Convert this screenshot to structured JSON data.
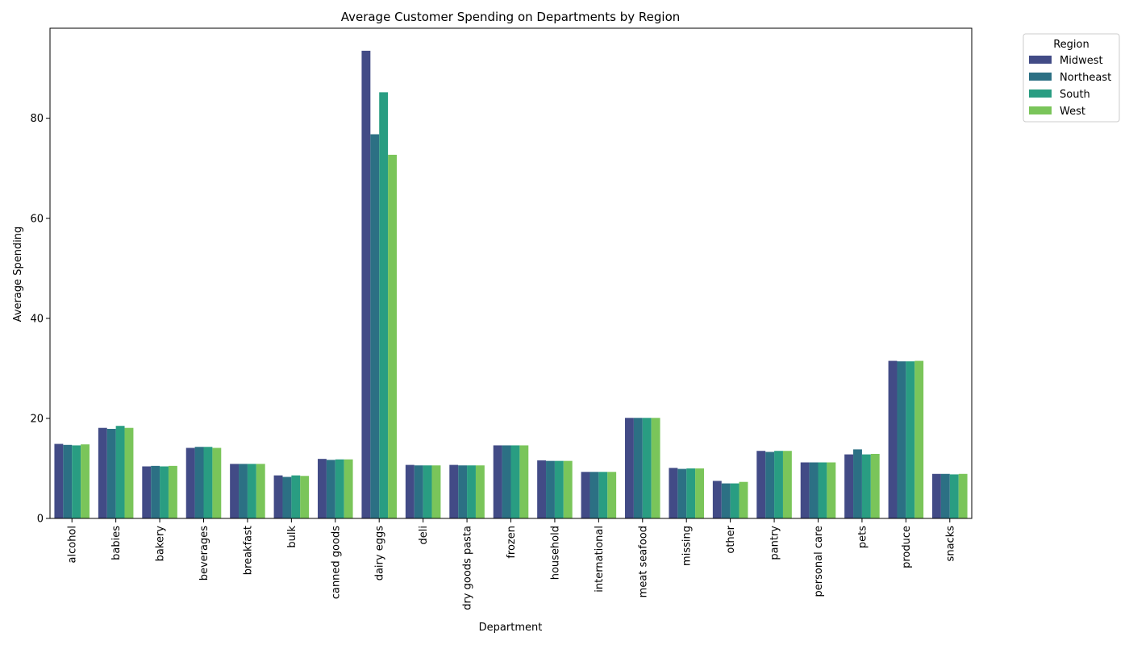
{
  "chart_data": {
    "type": "bar",
    "title": "Average Customer Spending on Departments by Region",
    "xlabel": "Department",
    "ylabel": "Average Spending",
    "ylim": [
      0,
      98
    ],
    "yticks": [
      0,
      20,
      40,
      60,
      80
    ],
    "grid": false,
    "legend": {
      "title": "Region",
      "placement": "outside-top-right"
    },
    "categories": [
      "alcohol",
      "babies",
      "bakery",
      "beverages",
      "breakfast",
      "bulk",
      "canned goods",
      "dairy eggs",
      "deli",
      "dry goods pasta",
      "frozen",
      "household",
      "international",
      "meat seafood",
      "missing",
      "other",
      "pantry",
      "personal care",
      "pets",
      "produce",
      "snacks"
    ],
    "series": [
      {
        "name": "Midwest",
        "color": "#424b86",
        "values": [
          14.9,
          18.1,
          10.4,
          14.1,
          10.9,
          8.6,
          11.9,
          93.5,
          10.7,
          10.7,
          14.6,
          11.6,
          9.3,
          20.1,
          10.1,
          7.5,
          13.5,
          11.2,
          12.8,
          31.5,
          8.9
        ]
      },
      {
        "name": "Northeast",
        "color": "#2c7084",
        "values": [
          14.7,
          17.9,
          10.5,
          14.3,
          10.9,
          8.3,
          11.7,
          76.8,
          10.6,
          10.6,
          14.6,
          11.5,
          9.3,
          20.1,
          9.9,
          7.0,
          13.3,
          11.2,
          13.8,
          31.4,
          8.9
        ]
      },
      {
        "name": "South",
        "color": "#299d82",
        "values": [
          14.6,
          18.5,
          10.4,
          14.3,
          10.9,
          8.6,
          11.8,
          85.2,
          10.6,
          10.6,
          14.6,
          11.5,
          9.3,
          20.1,
          10.0,
          7.0,
          13.5,
          11.2,
          12.8,
          31.4,
          8.8
        ]
      },
      {
        "name": "West",
        "color": "#7ac55a",
        "values": [
          14.8,
          18.1,
          10.5,
          14.1,
          10.9,
          8.5,
          11.8,
          72.7,
          10.6,
          10.6,
          14.6,
          11.5,
          9.3,
          20.1,
          10.0,
          7.3,
          13.5,
          11.2,
          12.9,
          31.5,
          8.9
        ]
      }
    ]
  }
}
